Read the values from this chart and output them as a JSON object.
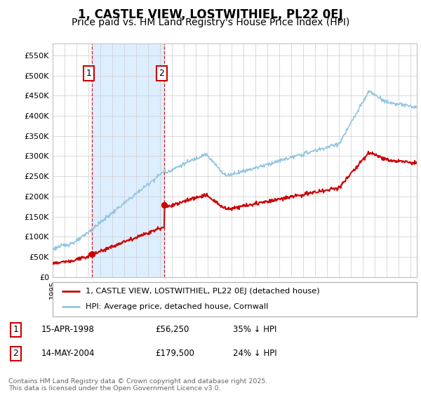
{
  "title": "1, CASTLE VIEW, LOSTWITHIEL, PL22 0EJ",
  "subtitle": "Price paid vs. HM Land Registry's House Price Index (HPI)",
  "title_fontsize": 12,
  "subtitle_fontsize": 10,
  "hpi_color": "#92c5de",
  "price_color": "#cc0000",
  "shade_color": "#ddeeff",
  "background_color": "#ffffff",
  "grid_color": "#cccccc",
  "ylim": [
    0,
    580000
  ],
  "yticks": [
    0,
    50000,
    100000,
    150000,
    200000,
    250000,
    300000,
    350000,
    400000,
    450000,
    500000,
    550000
  ],
  "ytick_labels": [
    "£0",
    "£50K",
    "£100K",
    "£150K",
    "£200K",
    "£250K",
    "£300K",
    "£350K",
    "£400K",
    "£450K",
    "£500K",
    "£550K"
  ],
  "purchase1_year": 1998.29,
  "purchase1_price": 56250,
  "purchase2_year": 2004.37,
  "purchase2_price": 179500,
  "legend_line1": "1, CASTLE VIEW, LOSTWITHIEL, PL22 0EJ (detached house)",
  "legend_line2": "HPI: Average price, detached house, Cornwall",
  "footnote": "Contains HM Land Registry data © Crown copyright and database right 2025.\nThis data is licensed under the Open Government Licence v3.0."
}
